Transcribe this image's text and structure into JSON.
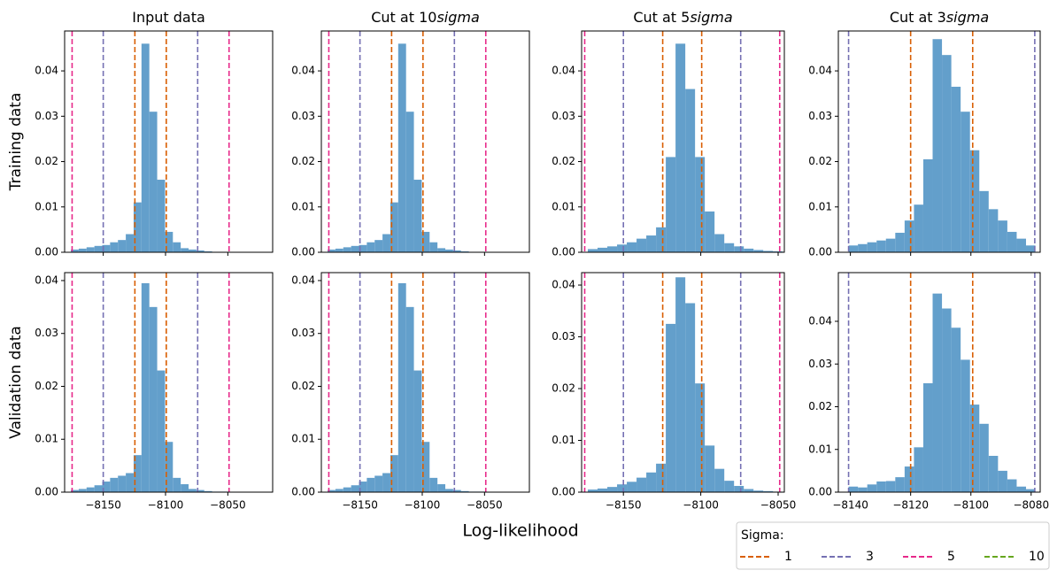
{
  "figure": {
    "xlabel": "Log-likelihood",
    "legend": {
      "title": "Sigma:",
      "series": [
        {
          "name": "1",
          "color": "#d95f02"
        },
        {
          "name": "3",
          "color": "#7570b3"
        },
        {
          "name": "5",
          "color": "#e7298a"
        },
        {
          "name": "10",
          "color": "#66a61e"
        }
      ]
    }
  },
  "chart_data": [
    {
      "type": "histogram",
      "title": "Input data",
      "ylabel": "Training data",
      "color": "#639fcb",
      "bins": [
        -8176,
        -8169.7,
        -8163.4,
        -8157.1,
        -8150.8,
        -8144.5,
        -8138.2,
        -8131.9,
        -8125.6,
        -8119.3,
        -8113,
        -8106.7,
        -8100.4,
        -8094.1,
        -8087.8,
        -8081.5,
        -8075.2,
        -8068.9,
        -8062.6,
        -8056.3,
        -8050
      ],
      "values": [
        0.0006,
        0.0008,
        0.0011,
        0.0014,
        0.0016,
        0.0022,
        0.0027,
        0.004,
        0.011,
        0.046,
        0.031,
        0.016,
        0.0045,
        0.0022,
        0.0009,
        0.0006,
        0.0004,
        0.0002,
        0.0001,
        0.0001
      ],
      "xlim": [
        -8181,
        -8014
      ],
      "ylim": [
        0,
        0.0488
      ],
      "xticks": [
        -8150,
        -8100,
        -8050
      ],
      "show_xtick_labels": false,
      "yticks": [
        {
          "value": 0,
          "label": "0.00"
        },
        {
          "value": 0.01,
          "label": "0.01"
        },
        {
          "value": 0.02,
          "label": "0.02"
        },
        {
          "value": 0.03,
          "label": "0.03"
        },
        {
          "value": 0.04,
          "label": "0.04"
        }
      ],
      "vlines": [
        {
          "x": -8175,
          "color": "#e7298a"
        },
        {
          "x": -8150,
          "color": "#7570b3"
        },
        {
          "x": -8124.6,
          "color": "#d95f02"
        },
        {
          "x": -8099.4,
          "color": "#d95f02"
        },
        {
          "x": -8074.2,
          "color": "#7570b3"
        },
        {
          "x": -8049,
          "color": "#e7298a"
        }
      ]
    },
    {
      "type": "histogram",
      "title": "Cut at 10",
      "title_italic": "sigma",
      "color": "#639fcb",
      "bins": [
        -8176,
        -8169.7,
        -8163.4,
        -8157.1,
        -8150.8,
        -8144.5,
        -8138.2,
        -8131.9,
        -8125.6,
        -8119.3,
        -8113,
        -8106.7,
        -8100.4,
        -8094.1,
        -8087.8,
        -8081.5,
        -8075.2,
        -8068.9,
        -8062.6,
        -8056.3,
        -8050
      ],
      "values": [
        0.0006,
        0.0008,
        0.0011,
        0.0014,
        0.0016,
        0.0022,
        0.0027,
        0.004,
        0.011,
        0.046,
        0.031,
        0.016,
        0.0045,
        0.0022,
        0.0009,
        0.0006,
        0.0004,
        0.0002,
        0.0001,
        0.0001
      ],
      "xlim": [
        -8181,
        -8014
      ],
      "ylim": [
        0,
        0.0488
      ],
      "xticks": [
        -8150,
        -8100,
        -8050
      ],
      "show_xtick_labels": false,
      "yticks": [
        {
          "value": 0,
          "label": "0.00"
        },
        {
          "value": 0.01,
          "label": "0.01"
        },
        {
          "value": 0.02,
          "label": "0.02"
        },
        {
          "value": 0.03,
          "label": "0.03"
        },
        {
          "value": 0.04,
          "label": "0.04"
        }
      ],
      "vlines": [
        {
          "x": -8175,
          "color": "#e7298a"
        },
        {
          "x": -8150,
          "color": "#7570b3"
        },
        {
          "x": -8124.6,
          "color": "#d95f02"
        },
        {
          "x": -8099.4,
          "color": "#d95f02"
        },
        {
          "x": -8074.2,
          "color": "#7570b3"
        },
        {
          "x": -8049,
          "color": "#e7298a"
        }
      ]
    },
    {
      "type": "histogram",
      "title": "Cut at 5",
      "title_italic": "sigma",
      "color": "#639fcb",
      "bins": [
        -8173,
        -8166.7,
        -8160.4,
        -8154.1,
        -8147.8,
        -8141.5,
        -8135.2,
        -8128.9,
        -8122.6,
        -8116.3,
        -8110,
        -8103.7,
        -8097.4,
        -8091.1,
        -8084.8,
        -8078.5,
        -8072.2,
        -8065.9,
        -8059.6,
        -8053.3,
        -8047
      ],
      "values": [
        0.0007,
        0.001,
        0.0013,
        0.0017,
        0.0022,
        0.003,
        0.0037,
        0.0055,
        0.021,
        0.046,
        0.036,
        0.021,
        0.009,
        0.004,
        0.002,
        0.0013,
        0.0008,
        0.0005,
        0.0003,
        0.0002
      ],
      "xlim": [
        -8177,
        -8046
      ],
      "ylim": [
        0,
        0.0488
      ],
      "xticks": [
        -8150,
        -8100,
        -8050
      ],
      "show_xtick_labels": false,
      "yticks": [
        {
          "value": 0,
          "label": "0.00"
        },
        {
          "value": 0.01,
          "label": "0.01"
        },
        {
          "value": 0.02,
          "label": "0.02"
        },
        {
          "value": 0.03,
          "label": "0.03"
        },
        {
          "value": 0.04,
          "label": "0.04"
        }
      ],
      "vlines": [
        {
          "x": -8175,
          "color": "#e7298a"
        },
        {
          "x": -8150,
          "color": "#7570b3"
        },
        {
          "x": -8124.6,
          "color": "#d95f02"
        },
        {
          "x": -8099.4,
          "color": "#d95f02"
        },
        {
          "x": -8074.2,
          "color": "#7570b3"
        },
        {
          "x": -8049,
          "color": "#e7298a"
        }
      ]
    },
    {
      "type": "histogram",
      "title": "Cut at 3",
      "title_italic": "sigma",
      "color": "#639fcb",
      "bins": [
        -8140.6,
        -8137.5,
        -8134.4,
        -8131.3,
        -8128.2,
        -8125.1,
        -8122,
        -8118.9,
        -8115.8,
        -8112.7,
        -8109.6,
        -8106.5,
        -8103.4,
        -8100.3,
        -8097.2,
        -8094.1,
        -8091,
        -8087.9,
        -8084.8,
        -8081.7,
        -8078.6
      ],
      "values": [
        0.0015,
        0.0018,
        0.0022,
        0.0026,
        0.003,
        0.0043,
        0.007,
        0.0105,
        0.0205,
        0.047,
        0.0435,
        0.0365,
        0.031,
        0.0225,
        0.0135,
        0.0095,
        0.007,
        0.0045,
        0.003,
        0.0015
      ],
      "xlim": [
        -8144,
        -8077
      ],
      "ylim": [
        0,
        0.0488
      ],
      "xticks": [
        -8140,
        -8120,
        -8100,
        -8080
      ],
      "show_xtick_labels": false,
      "yticks": [
        {
          "value": 0,
          "label": "0.00"
        },
        {
          "value": 0.01,
          "label": "0.01"
        },
        {
          "value": 0.02,
          "label": "0.02"
        },
        {
          "value": 0.03,
          "label": "0.03"
        },
        {
          "value": 0.04,
          "label": "0.04"
        }
      ],
      "vlines": [
        {
          "x": -8140.6,
          "color": "#7570b3"
        },
        {
          "x": -8120,
          "color": "#d95f02"
        },
        {
          "x": -8099.4,
          "color": "#d95f02"
        },
        {
          "x": -8078.8,
          "color": "#7570b3"
        }
      ]
    },
    {
      "type": "histogram",
      "ylabel": "Validation data",
      "color": "#639fcb",
      "bins": [
        -8176,
        -8169.7,
        -8163.4,
        -8157.1,
        -8150.8,
        -8144.5,
        -8138.2,
        -8131.9,
        -8125.6,
        -8119.3,
        -8113,
        -8106.7,
        -8100.4,
        -8094.1,
        -8087.8,
        -8081.5,
        -8075.2,
        -8068.9,
        -8062.6,
        -8056.3,
        -8050
      ],
      "values": [
        0.0004,
        0.0006,
        0.0009,
        0.0013,
        0.002,
        0.0027,
        0.0031,
        0.0036,
        0.007,
        0.0395,
        0.035,
        0.023,
        0.0095,
        0.0027,
        0.0015,
        0.0006,
        0.0004,
        0.0002,
        0.0001,
        0.0001
      ],
      "xlim": [
        -8181,
        -8014
      ],
      "ylim": [
        0,
        0.0415
      ],
      "xticks": [
        {
          "value": -8150,
          "label": "−8150"
        },
        {
          "value": -8100,
          "label": "−8100"
        },
        {
          "value": -8050,
          "label": "−8050"
        }
      ],
      "show_xtick_labels": true,
      "yticks": [
        {
          "value": 0,
          "label": "0.00"
        },
        {
          "value": 0.01,
          "label": "0.01"
        },
        {
          "value": 0.02,
          "label": "0.02"
        },
        {
          "value": 0.03,
          "label": "0.03"
        },
        {
          "value": 0.04,
          "label": "0.04"
        }
      ],
      "vlines": [
        {
          "x": -8175,
          "color": "#e7298a"
        },
        {
          "x": -8150,
          "color": "#7570b3"
        },
        {
          "x": -8124.6,
          "color": "#d95f02"
        },
        {
          "x": -8099.4,
          "color": "#d95f02"
        },
        {
          "x": -8074.2,
          "color": "#7570b3"
        },
        {
          "x": -8049,
          "color": "#e7298a"
        }
      ]
    },
    {
      "type": "histogram",
      "color": "#639fcb",
      "bins": [
        -8176,
        -8169.7,
        -8163.4,
        -8157.1,
        -8150.8,
        -8144.5,
        -8138.2,
        -8131.9,
        -8125.6,
        -8119.3,
        -8113,
        -8106.7,
        -8100.4,
        -8094.1,
        -8087.8,
        -8081.5,
        -8075.2,
        -8068.9,
        -8062.6,
        -8056.3,
        -8050
      ],
      "values": [
        0.0004,
        0.0006,
        0.0009,
        0.0013,
        0.002,
        0.0027,
        0.0031,
        0.0036,
        0.007,
        0.0395,
        0.035,
        0.023,
        0.0095,
        0.0027,
        0.0015,
        0.0006,
        0.0004,
        0.0002,
        0.0001,
        0.0001
      ],
      "xlim": [
        -8181,
        -8014
      ],
      "ylim": [
        0,
        0.0415
      ],
      "xticks": [
        {
          "value": -8150,
          "label": "−8150"
        },
        {
          "value": -8100,
          "label": "−8100"
        },
        {
          "value": -8050,
          "label": "−8050"
        }
      ],
      "show_xtick_labels": true,
      "yticks": [
        {
          "value": 0,
          "label": "0.00"
        },
        {
          "value": 0.01,
          "label": "0.01"
        },
        {
          "value": 0.02,
          "label": "0.02"
        },
        {
          "value": 0.03,
          "label": "0.03"
        },
        {
          "value": 0.04,
          "label": "0.04"
        }
      ],
      "vlines": [
        {
          "x": -8175,
          "color": "#e7298a"
        },
        {
          "x": -8150,
          "color": "#7570b3"
        },
        {
          "x": -8124.6,
          "color": "#d95f02"
        },
        {
          "x": -8099.4,
          "color": "#d95f02"
        },
        {
          "x": -8074.2,
          "color": "#7570b3"
        },
        {
          "x": -8049,
          "color": "#e7298a"
        }
      ]
    },
    {
      "type": "histogram",
      "color": "#639fcb",
      "bins": [
        -8173,
        -8166.7,
        -8160.4,
        -8154.1,
        -8147.8,
        -8141.5,
        -8135.2,
        -8128.9,
        -8122.6,
        -8116.3,
        -8110,
        -8103.7,
        -8097.4,
        -8091.1,
        -8084.8,
        -8078.5,
        -8072.2,
        -8065.9,
        -8059.6,
        -8053.3,
        -8047
      ],
      "values": [
        0.0005,
        0.0007,
        0.001,
        0.0015,
        0.002,
        0.0028,
        0.0038,
        0.0055,
        0.0325,
        0.0415,
        0.0365,
        0.021,
        0.009,
        0.0045,
        0.0022,
        0.0012,
        0.0006,
        0.0003,
        0.0002,
        0.0001
      ],
      "xlim": [
        -8177,
        -8046
      ],
      "ylim": [
        0,
        0.0424
      ],
      "xticks": [
        {
          "value": -8150,
          "label": "−8150"
        },
        {
          "value": -8100,
          "label": "−8100"
        },
        {
          "value": -8050,
          "label": "−8050"
        }
      ],
      "show_xtick_labels": true,
      "yticks": [
        {
          "value": 0,
          "label": "0.00"
        },
        {
          "value": 0.01,
          "label": "0.01"
        },
        {
          "value": 0.02,
          "label": "0.02"
        },
        {
          "value": 0.03,
          "label": "0.03"
        },
        {
          "value": 0.04,
          "label": "0.04"
        }
      ],
      "vlines": [
        {
          "x": -8175,
          "color": "#e7298a"
        },
        {
          "x": -8150,
          "color": "#7570b3"
        },
        {
          "x": -8124.6,
          "color": "#d95f02"
        },
        {
          "x": -8099.4,
          "color": "#d95f02"
        },
        {
          "x": -8074.2,
          "color": "#7570b3"
        },
        {
          "x": -8049,
          "color": "#e7298a"
        }
      ]
    },
    {
      "type": "histogram",
      "color": "#639fcb",
      "bins": [
        -8140.6,
        -8137.5,
        -8134.4,
        -8131.3,
        -8128.2,
        -8125.1,
        -8122,
        -8118.9,
        -8115.8,
        -8112.7,
        -8109.6,
        -8106.5,
        -8103.4,
        -8100.3,
        -8097.2,
        -8094.1,
        -8091,
        -8087.9,
        -8084.8,
        -8081.7,
        -8078.6
      ],
      "values": [
        0.0013,
        0.0011,
        0.0018,
        0.0025,
        0.0026,
        0.0035,
        0.006,
        0.0105,
        0.0255,
        0.0465,
        0.043,
        0.0385,
        0.031,
        0.0205,
        0.016,
        0.0085,
        0.005,
        0.003,
        0.0013,
        0.0007
      ],
      "xlim": [
        -8144,
        -8077
      ],
      "ylim": [
        0,
        0.0514
      ],
      "xticks": [
        {
          "value": -8140,
          "label": "−8140"
        },
        {
          "value": -8120,
          "label": "−8120"
        },
        {
          "value": -8100,
          "label": "−8100"
        },
        {
          "value": -8080,
          "label": "−8080"
        }
      ],
      "show_xtick_labels": true,
      "yticks": [
        {
          "value": 0,
          "label": "0.00"
        },
        {
          "value": 0.01,
          "label": "0.01"
        },
        {
          "value": 0.02,
          "label": "0.02"
        },
        {
          "value": 0.03,
          "label": "0.03"
        },
        {
          "value": 0.04,
          "label": "0.04"
        }
      ],
      "vlines": [
        {
          "x": -8140.6,
          "color": "#7570b3"
        },
        {
          "x": -8120,
          "color": "#d95f02"
        },
        {
          "x": -8099.4,
          "color": "#d95f02"
        },
        {
          "x": -8078.8,
          "color": "#7570b3"
        }
      ]
    }
  ]
}
